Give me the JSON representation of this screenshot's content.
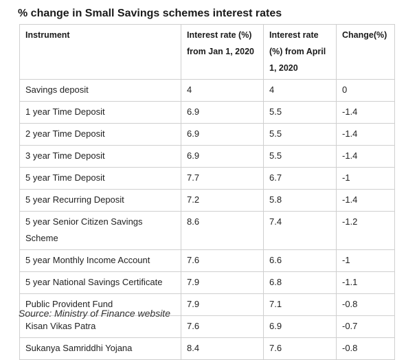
{
  "title": "% change in Small Savings schemes interest rates",
  "table": {
    "headers": [
      "Instrument",
      "Interest rate (%) from Jan 1, 2020",
      "Interest rate (%) from April 1, 2020",
      "Change(%)"
    ],
    "rows": [
      [
        "Savings deposit",
        "4",
        "4",
        "0"
      ],
      [
        "1 year Time Deposit",
        "6.9",
        "5.5",
        "-1.4"
      ],
      [
        "2 year Time Deposit",
        "6.9",
        "5.5",
        "-1.4"
      ],
      [
        "3 year Time Deposit",
        "6.9",
        "5.5",
        "-1.4"
      ],
      [
        "5 year Time Deposit",
        "7.7",
        "6.7",
        "-1"
      ],
      [
        "5 year Recurring Deposit",
        "7.2",
        "5.8",
        "-1.4"
      ],
      [
        "5 year Senior Citizen Savings Scheme",
        "8.6",
        "7.4",
        "-1.2"
      ],
      [
        "5 year Monthly Income Account",
        "7.6",
        "6.6",
        "-1"
      ],
      [
        "5 year National Savings Certificate",
        "7.9",
        "6.8",
        "-1.1"
      ],
      [
        "Public Provident Fund",
        "7.9",
        "7.1",
        "-0.8"
      ],
      [
        "Kisan Vikas Patra",
        "7.6",
        "6.9",
        "-0.7"
      ],
      [
        "Sukanya Samriddhi Yojana",
        "8.4",
        "7.6",
        "-0.8"
      ]
    ]
  },
  "source": "Source: Ministry of Finance website"
}
